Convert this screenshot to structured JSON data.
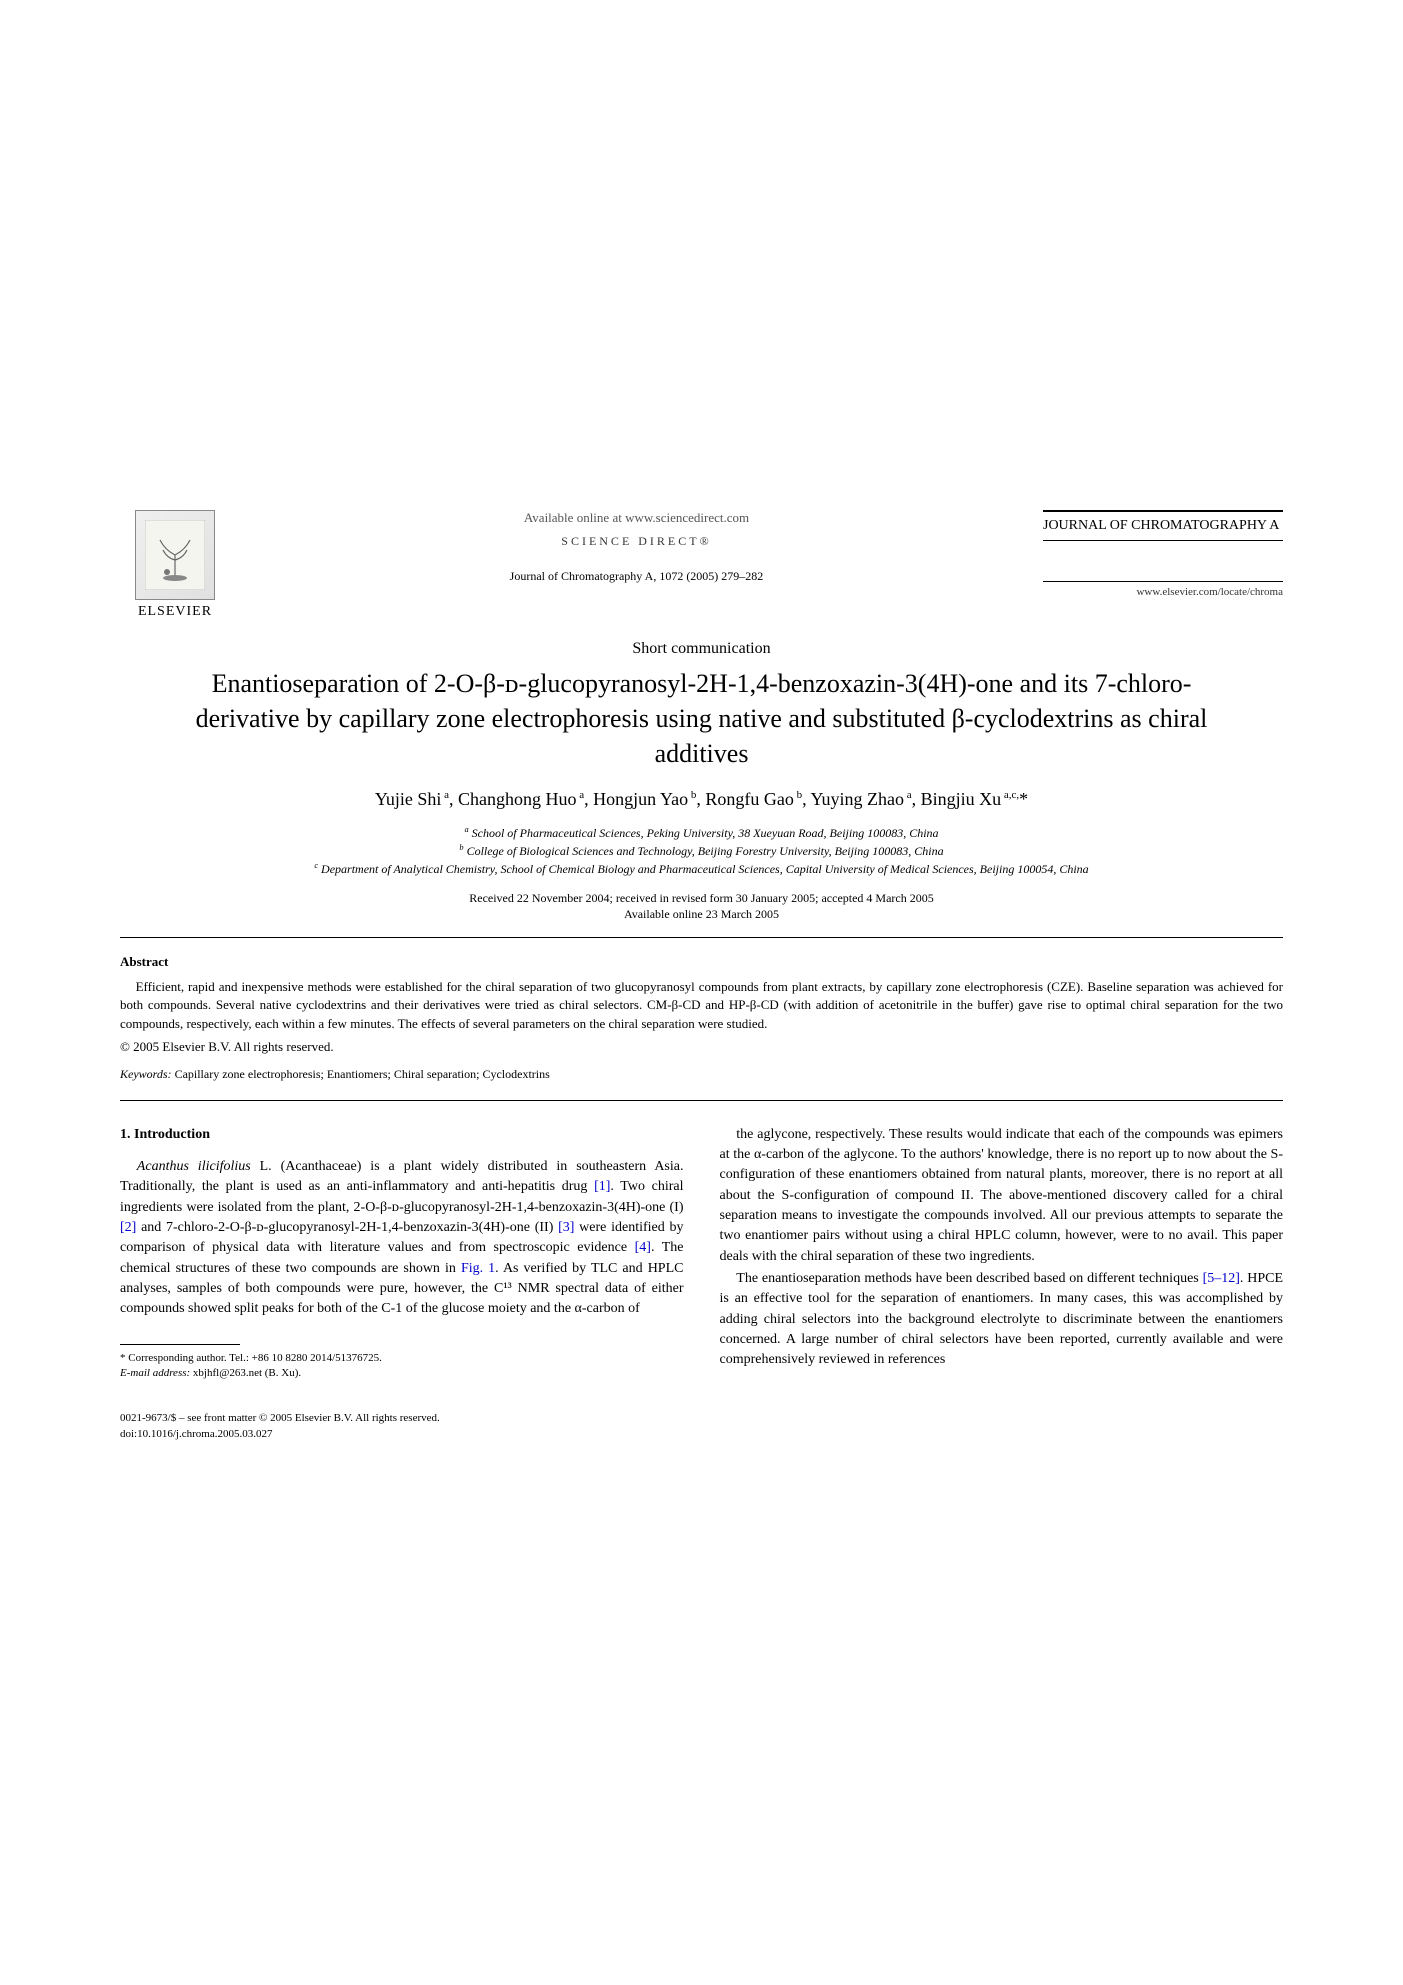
{
  "header": {
    "publisher": "ELSEVIER",
    "available_online": "Available online at www.sciencedirect.com",
    "sciencedirect": "SCIENCE DIRECT®",
    "journal_ref": "Journal of Chromatography A, 1072 (2005) 279–282",
    "journal_name": "JOURNAL OF CHROMATOGRAPHY A",
    "journal_url": "www.elsevier.com/locate/chroma"
  },
  "article_type": "Short communication",
  "title": "Enantioseparation of 2-O-β-ᴅ-glucopyranosyl-2H-1,4-benzoxazin-3(4H)-one and its 7-chloro-derivative by capillary zone electrophoresis using native and substituted β-cyclodextrins as chiral additives",
  "authors_html": "Yujie Shi<sup> a</sup>, Changhong Huo<sup> a</sup>, Hongjun Yao<sup> b</sup>, Rongfu Gao<sup> b</sup>, Yuying Zhao<sup> a</sup>, Bingjiu Xu<sup> a,c,</sup>*",
  "affiliations": {
    "a": "School of Pharmaceutical Sciences, Peking University, 38 Xueyuan Road, Beijing 100083, China",
    "b": "College of Biological Sciences and Technology, Beijing Forestry University, Beijing 100083, China",
    "c": "Department of Analytical Chemistry, School of Chemical Biology and Pharmaceutical Sciences, Capital University of Medical Sciences, Beijing 100054, China"
  },
  "dates": {
    "received": "Received 22 November 2004; received in revised form 30 January 2005; accepted 4 March 2005",
    "online": "Available online 23 March 2005"
  },
  "abstract": {
    "heading": "Abstract",
    "body": "Efficient, rapid and inexpensive methods were established for the chiral separation of two glucopyranosyl compounds from plant extracts, by capillary zone electrophoresis (CZE). Baseline separation was achieved for both compounds. Several native cyclodextrins and their derivatives were tried as chiral selectors. CM-β-CD and HP-β-CD (with addition of acetonitrile in the buffer) gave rise to optimal chiral separation for the two compounds, respectively, each within a few minutes. The effects of several parameters on the chiral separation were studied.",
    "copyright": "© 2005 Elsevier B.V. All rights reserved."
  },
  "keywords": {
    "label": "Keywords:",
    "text": "Capillary zone electrophoresis; Enantiomers; Chiral separation; Cyclodextrins"
  },
  "section1": {
    "heading": "1. Introduction",
    "para1": "Acanthus ilicifolius L. (Acanthaceae) is a plant widely distributed in southeastern Asia. Traditionally, the plant is used as an anti-inflammatory and anti-hepatitis drug [1]. Two chiral ingredients were isolated from the plant, 2-O-β-ᴅ-glucopyranosyl-2H-1,4-benzoxazin-3(4H)-one (I) [2] and 7-chloro-2-O-β-ᴅ-glucopyranosyl-2H-1,4-benzoxazin-3(4H)-one (II) [3] were identified by comparison of physical data with literature values and from spectroscopic evidence [4]. The chemical structures of these two compounds are shown in Fig. 1. As verified by TLC and HPLC analyses, samples of both compounds were pure, however, the C¹³ NMR spectral data of either compounds showed split peaks for both of the C-1 of the glucose moiety and the α-carbon of",
    "para2": "the aglycone, respectively. These results would indicate that each of the compounds was epimers at the α-carbon of the aglycone. To the authors' knowledge, there is no report up to now about the S-configuration of these enantiomers obtained from natural plants, moreover, there is no report at all about the S-configuration of compound II. The above-mentioned discovery called for a chiral separation means to investigate the compounds involved. All our previous attempts to separate the two enantiomer pairs without using a chiral HPLC column, however, were to no avail. This paper deals with the chiral separation of these two ingredients.",
    "para3": "The enantioseparation methods have been described based on different techniques [5–12]. HPCE is an effective tool for the separation of enantiomers. In many cases, this was accomplished by adding chiral selectors into the background electrolyte to discriminate between the enantiomers concerned. A large number of chiral selectors have been reported, currently available and were comprehensively reviewed in references"
  },
  "footnote": {
    "corresponding": "* Corresponding author. Tel.: +86 10 8280 2014/51376725.",
    "email_label": "E-mail address:",
    "email": "xbjhfl@263.net (B. Xu)."
  },
  "footer": {
    "line1": "0021-9673/$ – see front matter © 2005 Elsevier B.V. All rights reserved.",
    "line2": "doi:10.1016/j.chroma.2005.03.027"
  },
  "colors": {
    "text": "#000000",
    "link": "#0000cc",
    "background": "#ffffff"
  }
}
